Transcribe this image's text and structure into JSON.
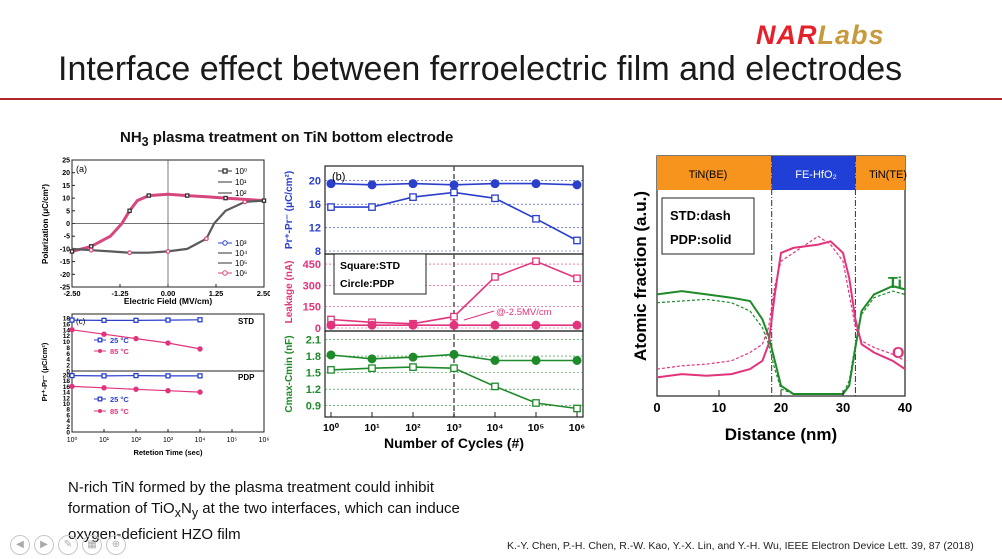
{
  "logo": {
    "nar": "NAR",
    "labs": "Labs",
    "nar_color": "#e5202a",
    "labs_color": "#c79a3e"
  },
  "slide": {
    "title": "Interface effect between ferroelectric film and electrodes",
    "subhead_pre": "NH",
    "subhead_sub": "3",
    "subhead_post": " plasma treatment on TiN bottom electrode",
    "body_1": "N-rich TiN formed by the plasma treatment could inhibit",
    "body_2a": "formation of TiO",
    "body_2b": "x",
    "body_2c": "N",
    "body_2d": "y",
    "body_2e": " at the two interfaces, which can induce",
    "body_3": "oxygen-deficient HZO film",
    "citation": "K.-Y. Chen, P.-H. Chen, R.-W. Kao, Y.-X. Lin, and Y.-H. Wu, IEEE Electron Device Lett. 39, 87 (2018)"
  },
  "chart_data": [
    {
      "type": "line",
      "panel": "(a)",
      "xlabel": "Electric Field (MV/cm)",
      "ylabel": "Polarization (μC/cm²)",
      "xlim": [
        -2.5,
        2.5
      ],
      "ylim": [
        -25,
        25
      ],
      "x_ticks": [
        "-2.50",
        "-1.25",
        "0.00",
        "1.25",
        "2.50"
      ],
      "y_ticks": [
        "-25",
        "-20",
        "-15",
        "-10",
        "-5",
        "0",
        "5",
        "10",
        "15",
        "20",
        "25"
      ],
      "legend_top": [
        "10⁰",
        "10¹",
        "10²"
      ],
      "legend_bottom": [
        "10³",
        "10⁴",
        "10⁵",
        "10⁶"
      ],
      "upper_branch": {
        "x": [
          -2.5,
          -2.0,
          -1.5,
          -1.2,
          -1.0,
          -0.8,
          -0.5,
          0,
          0.5,
          1.0,
          1.5,
          2.0,
          2.5
        ],
        "y": [
          -11,
          -9,
          -5,
          0,
          5,
          9,
          11,
          11.5,
          11,
          10.5,
          10,
          9.5,
          9
        ]
      },
      "lower_branch": {
        "x": [
          -2.5,
          -2.0,
          -1.5,
          -1.0,
          -0.5,
          0,
          0.5,
          1.0,
          1.2,
          1.5,
          2.0,
          2.5
        ],
        "y": [
          -10,
          -10.5,
          -11,
          -11.5,
          -11.5,
          -11,
          -10,
          -6,
          0,
          5,
          8.5,
          9
        ]
      }
    },
    {
      "type": "line",
      "panel": "(c)",
      "xlabel": "Retetion Time (sec)",
      "ylabel": "Pr⁺-Pr⁻ (μC/cm²)",
      "x_ticks": [
        "10⁰",
        "10¹",
        "10²",
        "10³",
        "10⁴",
        "10⁵",
        "10⁶"
      ],
      "y_ticks_top": [
        "0",
        "2",
        "4",
        "6",
        "8",
        "10",
        "12",
        "14",
        "16",
        "18"
      ],
      "y_ticks_bottom": [
        "0",
        "2",
        "4",
        "6",
        "8",
        "10",
        "12",
        "14",
        "16",
        "18",
        "20"
      ],
      "labels": [
        "STD",
        "PDP"
      ],
      "series": [
        {
          "name": "25 °C",
          "group": "STD",
          "x": [
            0,
            1,
            2,
            3,
            4
          ],
          "values": [
            17.3,
            17.2,
            17.2,
            17.3,
            17.4
          ]
        },
        {
          "name": "85 °C",
          "group": "STD",
          "x": [
            0,
            1,
            2,
            3,
            4
          ],
          "values": [
            14.0,
            12.5,
            11.0,
            9.5,
            7.5
          ]
        },
        {
          "name": "25 °C",
          "group": "PDP",
          "x": [
            0,
            1,
            2,
            3,
            4
          ],
          "values": [
            19.8,
            19.7,
            19.8,
            19.7,
            19.7
          ]
        },
        {
          "name": "85 °C",
          "group": "PDP",
          "x": [
            0,
            1,
            2,
            3,
            4
          ],
          "values": [
            16.0,
            15.5,
            15.0,
            14.5,
            14.0
          ]
        }
      ]
    },
    {
      "type": "line",
      "panel": "(b)",
      "xlabel": "Number of Cycles (#)",
      "x_ticks": [
        "10⁰",
        "10¹",
        "10²",
        "10³",
        "10⁴",
        "10⁵",
        "10⁶"
      ],
      "x": [
        0,
        1,
        2,
        3,
        4,
        5,
        6
      ],
      "legend_box": [
        "Square:STD",
        "Circle:PDP"
      ],
      "annotation": "@-2.5MV/cm",
      "panels": [
        {
          "ylabel": "Pr⁺-Pr⁻ (μC/cm²)",
          "ylim": [
            8,
            22
          ],
          "y_ticks": [
            "8",
            "12",
            "16",
            "20"
          ],
          "series": [
            {
              "marker": "square",
              "values": [
                15.5,
                15.5,
                17.2,
                18.0,
                17.0,
                13.5,
                9.8
              ]
            },
            {
              "marker": "circle",
              "values": [
                19.5,
                19.3,
                19.5,
                19.3,
                19.5,
                19.5,
                19.3
              ]
            }
          ]
        },
        {
          "ylabel": "Leakage (nA)",
          "ylim": [
            0,
            500
          ],
          "y_ticks": [
            "0",
            "150",
            "300",
            "450"
          ],
          "series": [
            {
              "marker": "square",
              "values": [
                60,
                40,
                30,
                80,
                360,
                470,
                350
              ]
            },
            {
              "marker": "circle",
              "values": [
                20,
                20,
                20,
                20,
                20,
                20,
                20
              ]
            }
          ]
        },
        {
          "ylabel": "Cmax-Cmin (nF)",
          "ylim": [
            0.75,
            2.2
          ],
          "y_ticks": [
            "0.9",
            "1.2",
            "1.5",
            "1.8",
            "2.1"
          ],
          "series": [
            {
              "marker": "square",
              "values": [
                1.55,
                1.58,
                1.6,
                1.58,
                1.25,
                0.95,
                0.85
              ]
            },
            {
              "marker": "circle",
              "values": [
                1.82,
                1.75,
                1.78,
                1.83,
                1.72,
                1.72,
                1.72
              ]
            }
          ]
        }
      ]
    },
    {
      "type": "line",
      "xlabel": "Distance (nm)",
      "ylabel": "Atomic fraction (a.u.)",
      "xlim": [
        0,
        40
      ],
      "x_ticks": [
        "0",
        "10",
        "20",
        "30",
        "40"
      ],
      "regions": [
        "TiN(BE)",
        "FE-HfO₂",
        "TiN(TE)"
      ],
      "region_colors": [
        "#f7941d",
        "#1f3fd6",
        "#f7941d"
      ],
      "legend_box": [
        "STD:dash",
        "PDP:solid"
      ],
      "series_labels": [
        "Ti",
        "O"
      ],
      "series": [
        {
          "name": "Ti",
          "style": "solid",
          "x": [
            0,
            4,
            8,
            12,
            15,
            17,
            18,
            19,
            20,
            22,
            26,
            30,
            31,
            32,
            33,
            35,
            38,
            40
          ],
          "values": [
            0.6,
            0.62,
            0.6,
            0.58,
            0.56,
            0.45,
            0.35,
            0.2,
            0.05,
            0.0,
            0.0,
            0.0,
            0.05,
            0.28,
            0.5,
            0.6,
            0.65,
            0.63
          ]
        },
        {
          "name": "O",
          "style": "solid",
          "x": [
            0,
            4,
            8,
            12,
            15,
            17,
            18,
            19,
            20,
            22,
            26,
            28,
            30,
            31,
            32,
            33,
            35,
            38,
            40
          ],
          "values": [
            0.1,
            0.12,
            0.11,
            0.12,
            0.15,
            0.2,
            0.3,
            0.6,
            0.85,
            0.88,
            0.9,
            0.92,
            0.85,
            0.7,
            0.45,
            0.3,
            0.25,
            0.2,
            0.15
          ]
        },
        {
          "name": "Ti",
          "style": "dash",
          "x": [
            0,
            4,
            8,
            12,
            15,
            17,
            18,
            19,
            20,
            22,
            26,
            30,
            31,
            32,
            33,
            35,
            38,
            40
          ],
          "values": [
            0.55,
            0.56,
            0.57,
            0.55,
            0.5,
            0.4,
            0.3,
            0.15,
            0.03,
            0.0,
            0.0,
            0.0,
            0.08,
            0.3,
            0.48,
            0.58,
            0.62,
            0.6
          ]
        },
        {
          "name": "O",
          "style": "dash",
          "x": [
            0,
            4,
            8,
            12,
            15,
            17,
            18,
            19,
            20,
            22,
            26,
            28,
            30,
            31,
            32,
            33,
            35,
            38,
            40
          ],
          "values": [
            0.15,
            0.17,
            0.18,
            0.2,
            0.25,
            0.3,
            0.4,
            0.65,
            0.8,
            0.85,
            0.95,
            0.9,
            0.8,
            0.6,
            0.4,
            0.32,
            0.28,
            0.24,
            0.2
          ]
        }
      ]
    }
  ]
}
